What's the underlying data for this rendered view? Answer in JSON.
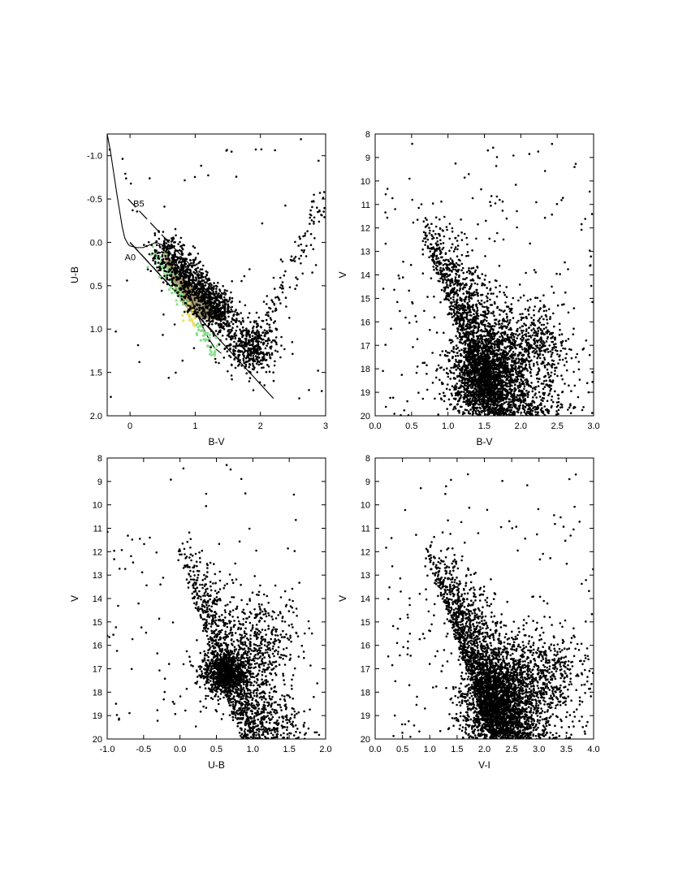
{
  "chart_data": [
    {
      "id": "ubv",
      "type": "scatter",
      "xlabel": "B-V",
      "ylabel": "U-B",
      "xlim": [
        -0.35,
        3.0
      ],
      "ylim": [
        2.0,
        -1.25
      ],
      "y_inverted": true,
      "xticks": [
        {
          "v": 0,
          "label": "0"
        },
        {
          "v": 1,
          "label": "1"
        },
        {
          "v": 2,
          "label": "2"
        },
        {
          "v": 3,
          "label": "3"
        }
      ],
      "yticks": [
        {
          "v": -1.0,
          "label": "-1.0"
        },
        {
          "v": -0.5,
          "label": "-0.5"
        },
        {
          "v": 0.0,
          "label": "0.0"
        },
        {
          "v": 0.5,
          "label": "0.5"
        },
        {
          "v": 1.0,
          "label": "1.0"
        },
        {
          "v": 1.5,
          "label": "1.5"
        },
        {
          "v": 2.0,
          "label": "2.0"
        }
      ],
      "grid": false,
      "annotations": [
        {
          "text": "B5",
          "x": 0.05,
          "y": -0.45
        },
        {
          "text": "A0",
          "x": -0.08,
          "y": 0.17
        }
      ],
      "intrinsic_zams": [
        [
          -0.35,
          -1.25
        ],
        [
          -0.3,
          -1.05
        ],
        [
          -0.25,
          -0.8
        ],
        [
          -0.2,
          -0.55
        ],
        [
          -0.15,
          -0.32
        ],
        [
          -0.12,
          -0.18
        ],
        [
          -0.08,
          -0.05
        ],
        [
          -0.03,
          0.02
        ],
        [
          0.0,
          0.04
        ],
        [
          0.1,
          0.06
        ],
        [
          0.2,
          0.06
        ],
        [
          0.3,
          0.03
        ],
        [
          0.4,
          0.0
        ],
        [
          0.5,
          0.03
        ],
        [
          0.6,
          0.1
        ],
        [
          0.7,
          0.22
        ],
        [
          0.8,
          0.38
        ],
        [
          0.9,
          0.56
        ],
        [
          1.0,
          0.78
        ],
        [
          1.1,
          0.95
        ],
        [
          1.2,
          1.1
        ],
        [
          1.3,
          1.22
        ],
        [
          1.4,
          1.28
        ]
      ],
      "reddening_lines": [
        {
          "style": "dashed",
          "from": [
            -0.03,
            -0.5
          ],
          "to": [
            1.55,
            0.76
          ]
        },
        {
          "style": "solid",
          "from": [
            0.0,
            0.0
          ],
          "to": [
            2.2,
            1.8
          ]
        },
        {
          "style": "dashed",
          "from": [
            0.0,
            0.0
          ],
          "to": [
            1.3,
            1.05
          ]
        }
      ],
      "shaded_region": [
        [
          0.48,
          0.01
        ],
        [
          0.7,
          0.3
        ],
        [
          0.95,
          0.5
        ],
        [
          1.2,
          0.68
        ],
        [
          1.5,
          0.88
        ],
        [
          1.35,
          0.9
        ],
        [
          1.0,
          0.86
        ],
        [
          0.8,
          0.7
        ],
        [
          0.66,
          0.48
        ],
        [
          0.55,
          0.25
        ]
      ],
      "colors": {
        "points": "#000000",
        "shade": "#8a7a45",
        "zams_green": "#8be08b",
        "zams_yellow": "#e8e060"
      },
      "scatter_seed": 11
    },
    {
      "id": "v-bv",
      "type": "scatter",
      "xlabel": "B-V",
      "ylabel": "V",
      "xlim": [
        0.0,
        3.0
      ],
      "ylim": [
        20,
        8
      ],
      "y_inverted": true,
      "xticks": [
        {
          "v": 0.0,
          "label": "0.0"
        },
        {
          "v": 0.5,
          "label": "0.5"
        },
        {
          "v": 1.0,
          "label": "1.0"
        },
        {
          "v": 1.5,
          "label": "1.5"
        },
        {
          "v": 2.0,
          "label": "2.0"
        },
        {
          "v": 2.5,
          "label": "2.5"
        },
        {
          "v": 3.0,
          "label": "3.0"
        }
      ],
      "yticks": [
        {
          "v": 8,
          "label": "8"
        },
        {
          "v": 9,
          "label": "9"
        },
        {
          "v": 10,
          "label": "10"
        },
        {
          "v": 11,
          "label": "11"
        },
        {
          "v": 12,
          "label": "12"
        },
        {
          "v": 13,
          "label": "13"
        },
        {
          "v": 14,
          "label": "14"
        },
        {
          "v": 15,
          "label": "15"
        },
        {
          "v": 16,
          "label": "16"
        },
        {
          "v": 17,
          "label": "17"
        },
        {
          "v": 18,
          "label": "18"
        },
        {
          "v": 19,
          "label": "19"
        },
        {
          "v": 20,
          "label": "20"
        }
      ],
      "grid": false,
      "main_sequence": {
        "x_at_bright": 0.55,
        "bright_v": 11.5,
        "slope_x_per_mag": 0.12,
        "width": 0.32,
        "count": 2200
      },
      "dense_core": {
        "x": 1.45,
        "y": 18.5,
        "sx": 0.22,
        "sy": 1.0,
        "count": 1500
      },
      "red_clump": {
        "x": 2.1,
        "y": 17.0,
        "sx": 0.3,
        "sy": 0.9,
        "count": 500
      },
      "field_scatter": {
        "xmin": 0.1,
        "xmax": 3.0,
        "ymin": 8.2,
        "ymax": 20,
        "count": 250
      },
      "colors": {
        "points": "#000000"
      },
      "scatter_seed": 23
    },
    {
      "id": "v-ub",
      "type": "scatter",
      "xlabel": "U-B",
      "ylabel": "V",
      "xlim": [
        -1.0,
        2.0
      ],
      "ylim": [
        20,
        8
      ],
      "y_inverted": true,
      "xticks": [
        {
          "v": -1.0,
          "label": "-1.0"
        },
        {
          "v": -0.5,
          "label": "-0.5"
        },
        {
          "v": 0.0,
          "label": "0.0"
        },
        {
          "v": 0.5,
          "label": "0.5"
        },
        {
          "v": 1.0,
          "label": "1.0"
        },
        {
          "v": 1.5,
          "label": "1.5"
        },
        {
          "v": 2.0,
          "label": "2.0"
        }
      ],
      "yticks": [
        {
          "v": 8,
          "label": "8"
        },
        {
          "v": 9,
          "label": "9"
        },
        {
          "v": 10,
          "label": "10"
        },
        {
          "v": 11,
          "label": "11"
        },
        {
          "v": 12,
          "label": "12"
        },
        {
          "v": 13,
          "label": "13"
        },
        {
          "v": 14,
          "label": "14"
        },
        {
          "v": 15,
          "label": "15"
        },
        {
          "v": 16,
          "label": "16"
        },
        {
          "v": 17,
          "label": "17"
        },
        {
          "v": 18,
          "label": "18"
        },
        {
          "v": 19,
          "label": "19"
        },
        {
          "v": 20,
          "label": "20"
        }
      ],
      "grid": false,
      "main_sequence": {
        "x_at_bright": -0.1,
        "bright_v": 11.5,
        "slope_x_per_mag": 0.11,
        "width": 0.28,
        "count": 1400
      },
      "dense_core": {
        "x": 0.6,
        "y": 17.2,
        "sx": 0.15,
        "sy": 0.45,
        "count": 900
      },
      "red_clump": {
        "x": 1.15,
        "y": 15.8,
        "sx": 0.25,
        "sy": 1.1,
        "count": 350
      },
      "field_scatter": {
        "xmin": -1.0,
        "xmax": 1.6,
        "ymin": 8.2,
        "ymax": 19.5,
        "count": 110
      },
      "colors": {
        "points": "#000000"
      },
      "scatter_seed": 37
    },
    {
      "id": "v-vi",
      "type": "scatter",
      "xlabel": "V-I",
      "ylabel": "V",
      "xlim": [
        0.0,
        4.0
      ],
      "ylim": [
        20,
        8
      ],
      "y_inverted": true,
      "xticks": [
        {
          "v": 0.0,
          "label": "0.0"
        },
        {
          "v": 0.5,
          "label": "0.5"
        },
        {
          "v": 1.0,
          "label": "1.0"
        },
        {
          "v": 1.5,
          "label": "1.5"
        },
        {
          "v": 2.0,
          "label": "2.0"
        },
        {
          "v": 2.5,
          "label": "2.5"
        },
        {
          "v": 3.0,
          "label": "3.0"
        },
        {
          "v": 3.5,
          "label": "3.5"
        },
        {
          "v": 4.0,
          "label": "4.0"
        }
      ],
      "yticks": [
        {
          "v": 8,
          "label": "8"
        },
        {
          "v": 9,
          "label": "9"
        },
        {
          "v": 10,
          "label": "10"
        },
        {
          "v": 11,
          "label": "11"
        },
        {
          "v": 12,
          "label": "12"
        },
        {
          "v": 13,
          "label": "13"
        },
        {
          "v": 14,
          "label": "14"
        },
        {
          "v": 15,
          "label": "15"
        },
        {
          "v": 16,
          "label": "16"
        },
        {
          "v": 17,
          "label": "17"
        },
        {
          "v": 18,
          "label": "18"
        },
        {
          "v": 19,
          "label": "19"
        },
        {
          "v": 20,
          "label": "20"
        }
      ],
      "grid": false,
      "main_sequence": {
        "x_at_bright": 0.85,
        "bright_v": 11.5,
        "slope_x_per_mag": 0.15,
        "width": 0.4,
        "count": 2300
      },
      "dense_core": {
        "x": 2.2,
        "y": 18.5,
        "sx": 0.3,
        "sy": 1.0,
        "count": 1700
      },
      "red_clump": {
        "x": 3.0,
        "y": 17.2,
        "sx": 0.4,
        "sy": 0.9,
        "count": 550
      },
      "field_scatter": {
        "xmin": 0.2,
        "xmax": 4.0,
        "ymin": 8.2,
        "ymax": 20,
        "count": 220
      },
      "colors": {
        "points": "#000000"
      },
      "scatter_seed": 53
    }
  ]
}
